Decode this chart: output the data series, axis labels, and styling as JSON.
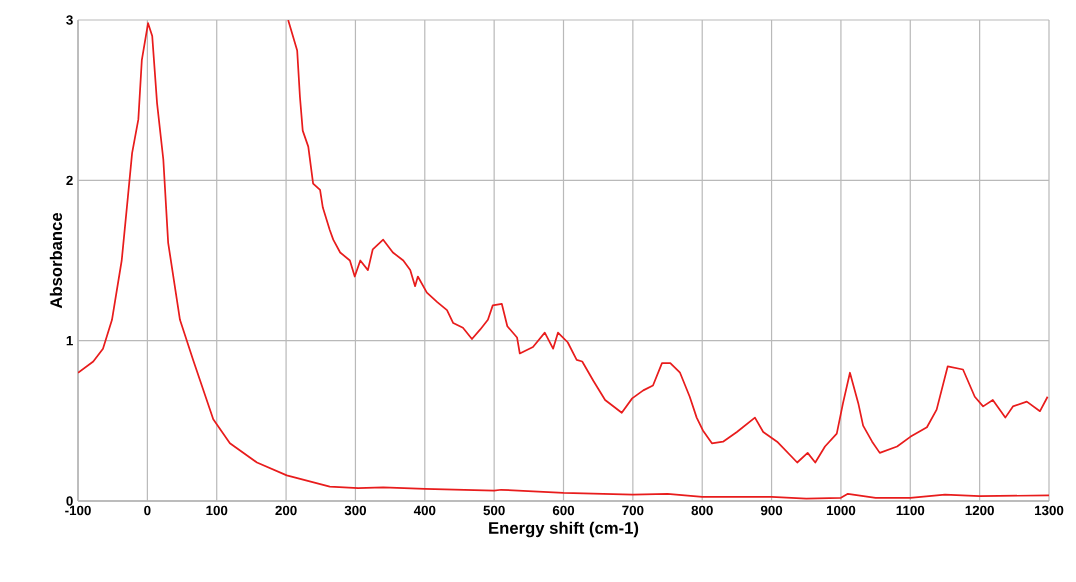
{
  "chart_data": {
    "type": "line",
    "xlabel": "Energy shift (cm-1)",
    "ylabel": "Absorbance",
    "xlim": [
      -100,
      1300
    ],
    "ylim": [
      0,
      3
    ],
    "xticks": [
      -100,
      0,
      100,
      200,
      300,
      400,
      500,
      600,
      700,
      800,
      900,
      1000,
      1100,
      1200,
      1300
    ],
    "yticks": [
      0,
      1,
      2,
      3
    ],
    "grid": true,
    "marker": "none",
    "line_style": "solid",
    "series": [
      {
        "color": "#e81c1c",
        "x": [
          -100,
          -78,
          -64,
          -51,
          -37,
          -28,
          -22,
          -13,
          -8,
          1,
          7,
          14,
          23,
          30,
          47,
          66,
          95,
          119,
          158,
          201,
          263,
          304,
          340,
          400,
          500,
          510,
          600,
          700,
          750,
          800,
          900,
          950,
          1000,
          1010,
          1050,
          1100,
          1150,
          1200,
          1300
        ],
        "values": [
          0.8,
          0.87,
          0.95,
          1.13,
          1.5,
          1.9,
          2.17,
          2.38,
          2.75,
          2.98,
          2.9,
          2.48,
          2.13,
          1.61,
          1.13,
          0.88,
          0.51,
          0.36,
          0.24,
          0.16,
          0.09,
          0.08,
          0.085,
          0.075,
          0.065,
          0.07,
          0.05,
          0.04,
          0.045,
          0.025,
          0.025,
          0.015,
          0.02,
          0.045,
          0.02,
          0.02,
          0.04,
          0.03,
          0.035
        ]
      },
      {
        "color": "#e81c1c",
        "x": [
          203,
          216,
          220,
          224,
          232,
          239,
          249,
          253,
          263,
          268,
          278,
          292,
          299,
          307,
          318,
          325,
          340,
          354,
          369,
          379,
          386,
          390,
          403,
          418,
          432,
          441,
          455,
          468,
          480,
          491,
          498,
          511,
          519,
          533,
          537,
          556,
          573,
          585,
          592,
          606,
          619,
          627,
          643,
          660,
          684,
          699,
          715,
          729,
          742,
          754,
          768,
          782,
          792,
          801,
          814,
          830,
          850,
          876,
          888,
          908,
          937,
          952,
          963,
          977,
          994,
          1003,
          1013,
          1025,
          1032,
          1045,
          1056,
          1081,
          1100,
          1124,
          1138,
          1154,
          1176,
          1193,
          1205,
          1219,
          1237,
          1248,
          1268,
          1287,
          1298
        ],
        "values": [
          3.0,
          2.81,
          2.52,
          2.31,
          2.21,
          1.98,
          1.94,
          1.83,
          1.69,
          1.63,
          1.55,
          1.5,
          1.4,
          1.5,
          1.44,
          1.57,
          1.63,
          1.55,
          1.5,
          1.44,
          1.34,
          1.4,
          1.3,
          1.24,
          1.19,
          1.11,
          1.08,
          1.01,
          1.07,
          1.13,
          1.22,
          1.23,
          1.09,
          1.02,
          0.92,
          0.96,
          1.05,
          0.95,
          1.05,
          0.99,
          0.88,
          0.87,
          0.75,
          0.63,
          0.55,
          0.64,
          0.69,
          0.72,
          0.86,
          0.86,
          0.8,
          0.65,
          0.52,
          0.44,
          0.36,
          0.37,
          0.43,
          0.52,
          0.43,
          0.37,
          0.24,
          0.3,
          0.24,
          0.34,
          0.42,
          0.61,
          0.8,
          0.61,
          0.47,
          0.37,
          0.3,
          0.34,
          0.4,
          0.46,
          0.57,
          0.84,
          0.82,
          0.65,
          0.59,
          0.63,
          0.52,
          0.59,
          0.62,
          0.56,
          0.65
        ]
      }
    ]
  }
}
